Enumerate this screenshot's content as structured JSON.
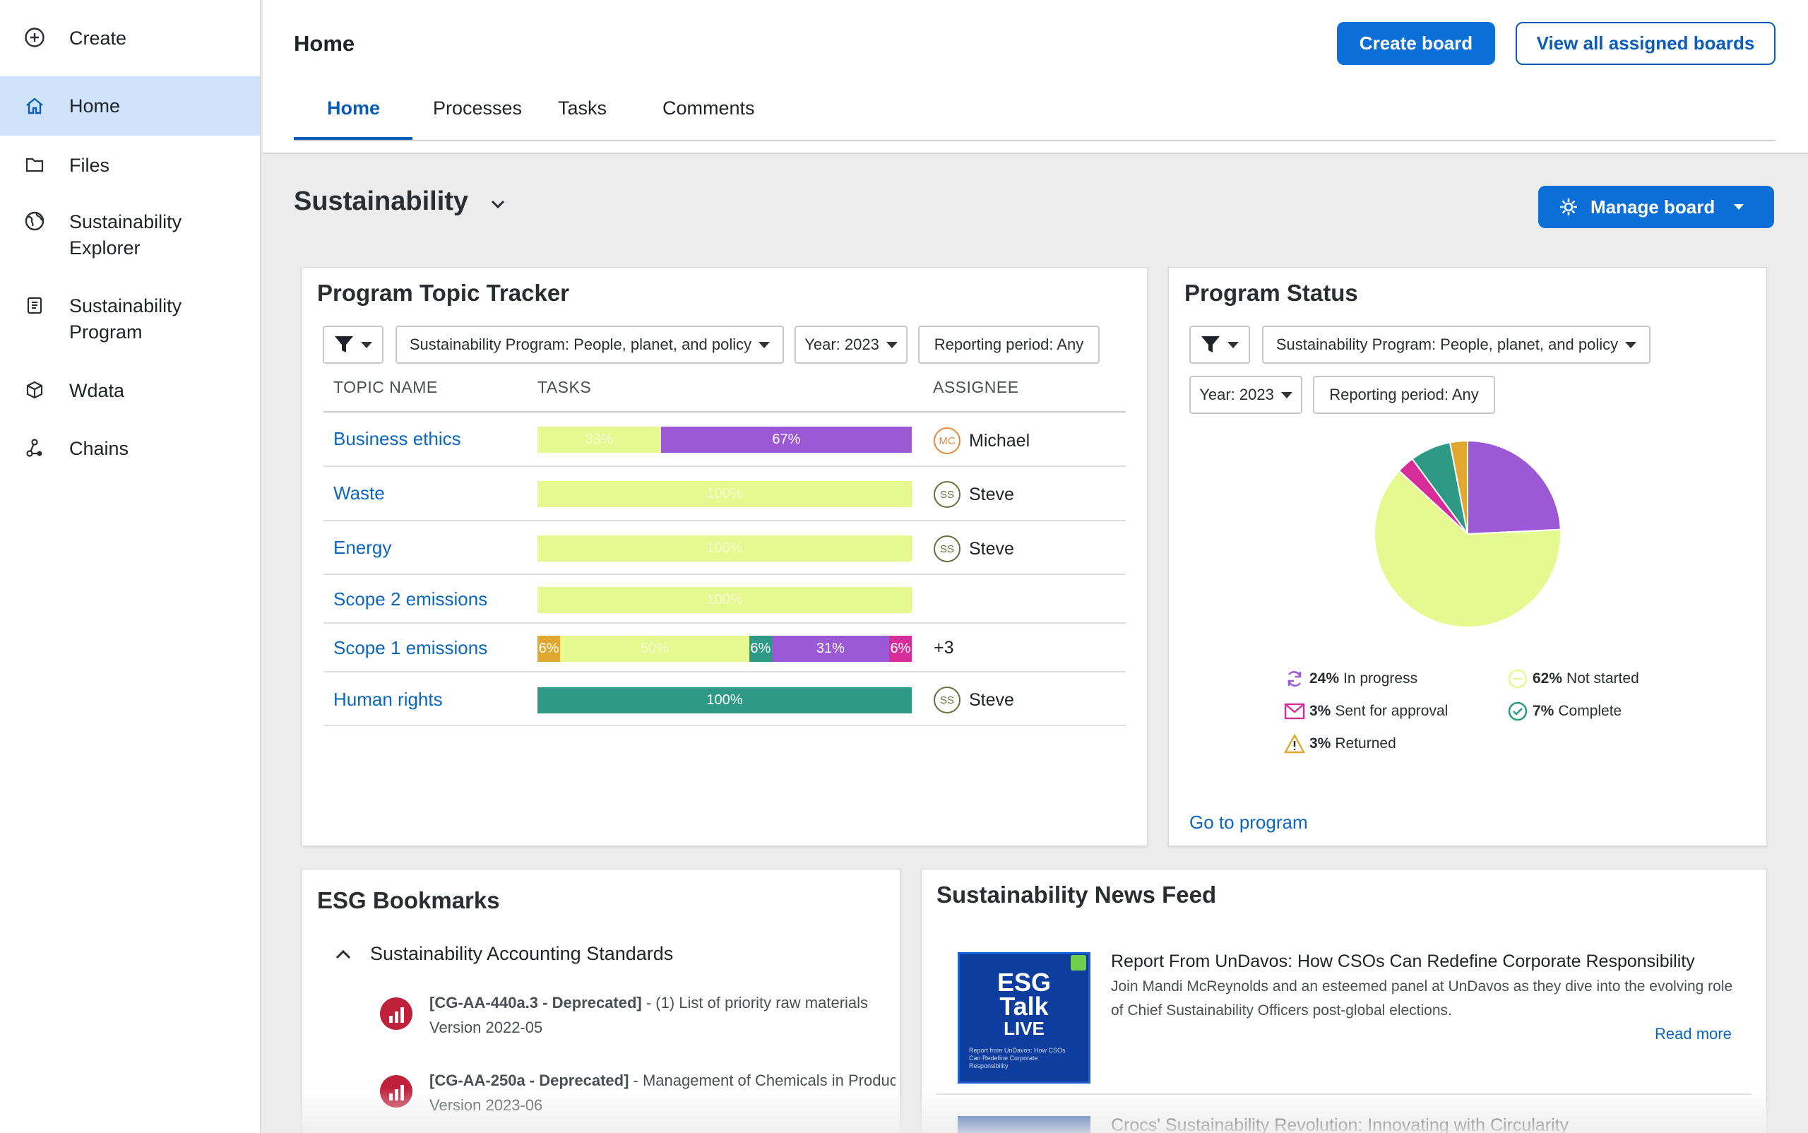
{
  "sidebar": {
    "items": [
      {
        "label": "Create",
        "icon": "plus-circle-icon"
      },
      {
        "label": "Home",
        "icon": "home-icon"
      },
      {
        "label": "Files",
        "icon": "folder-icon"
      },
      {
        "label": "Sustainability Explorer",
        "icon": "globe-icon"
      },
      {
        "label": "Sustainability Program",
        "icon": "clipboard-icon"
      },
      {
        "label": "Wdata",
        "icon": "cube-icon"
      },
      {
        "label": "Chains",
        "icon": "chains-icon"
      }
    ]
  },
  "header": {
    "title": "Home",
    "create_board": "Create board",
    "view_all": "View all assigned boards",
    "tabs": [
      "Home",
      "Processes",
      "Tasks",
      "Comments"
    ]
  },
  "board": {
    "title": "Sustainability",
    "manage": "Manage board"
  },
  "tracker": {
    "title": "Program Topic Tracker",
    "filters": {
      "program": "Sustainability Program: People, planet, and policy",
      "year": "Year: 2023",
      "period": "Reporting period: Any"
    },
    "columns": [
      "TOPIC NAME",
      "TASKS",
      "ASSIGNEE"
    ],
    "rows": [
      {
        "topic": "Business ethics",
        "segments": [
          {
            "pct": 33,
            "label": "33%",
            "color": "#e6f991"
          },
          {
            "pct": 67,
            "label": "67%",
            "color": "#9b59d6"
          }
        ],
        "assignee": {
          "initials": "MC",
          "name": "Michael"
        }
      },
      {
        "topic": "Waste",
        "segments": [
          {
            "pct": 100,
            "label": "100%",
            "color": "#e6f991"
          }
        ],
        "assignee": {
          "initials": "SS",
          "name": "Steve"
        }
      },
      {
        "topic": "Energy",
        "segments": [
          {
            "pct": 100,
            "label": "100%",
            "color": "#e6f991"
          }
        ],
        "assignee": {
          "initials": "SS",
          "name": "Steve"
        }
      },
      {
        "topic": "Scope 2 emissions",
        "segments": [
          {
            "pct": 100,
            "label": "100%",
            "color": "#e6f991"
          }
        ],
        "assignee": null
      },
      {
        "topic": "Scope 1 emissions",
        "segments": [
          {
            "pct": 6,
            "label": "6%",
            "color": "#e0a82e"
          },
          {
            "pct": 50,
            "label": "50%",
            "color": "#e6f991"
          },
          {
            "pct": 6,
            "label": "6%",
            "color": "#2e9a85"
          },
          {
            "pct": 31,
            "label": "31%",
            "color": "#9b59d6"
          },
          {
            "pct": 6,
            "label": "6%",
            "color": "#d62d9a"
          }
        ],
        "assignee_more": "+3"
      },
      {
        "topic": "Human rights",
        "segments": [
          {
            "pct": 100,
            "label": "100%",
            "color": "#2e9a85"
          }
        ],
        "assignee": {
          "initials": "SS",
          "name": "Steve"
        }
      }
    ]
  },
  "status": {
    "title": "Program Status",
    "filters": {
      "program": "Sustainability Program: People, planet, and policy",
      "year": "Year: 2023",
      "period": "Reporting period: Any"
    },
    "legend": [
      {
        "pct": "24%",
        "label": "In progress",
        "icon": "refresh-icon",
        "color": "#9b59d6"
      },
      {
        "pct": "62%",
        "label": "Not started",
        "icon": "dash-circle-icon",
        "color": "#e6f991"
      },
      {
        "pct": "3%",
        "label": "Sent for approval",
        "icon": "envelope-icon",
        "color": "#d62d9a"
      },
      {
        "pct": "7%",
        "label": "Complete",
        "icon": "check-circle-icon",
        "color": "#2e9a85"
      },
      {
        "pct": "3%",
        "label": "Returned",
        "icon": "warning-icon",
        "color": "#e0a82e"
      }
    ],
    "link": "Go to program"
  },
  "chart_data": {
    "type": "pie",
    "title": "Program Status",
    "categories": [
      "In progress",
      "Not started",
      "Sent for approval",
      "Complete",
      "Returned"
    ],
    "values": [
      24,
      62,
      3,
      7,
      3
    ],
    "colors": [
      "#9b59d6",
      "#e6f991",
      "#d62d9a",
      "#2e9a85",
      "#e0a82e"
    ]
  },
  "bookmarks": {
    "title": "ESG Bookmarks",
    "group": "Sustainability Accounting Standards",
    "items": [
      {
        "code": "[CG-AA-440a.3 - Deprecated]",
        "text": " - (1) List of priority raw materials",
        "version": "Version 2022-05"
      },
      {
        "code": "[CG-AA-250a - Deprecated]",
        "text": " - Management of Chemicals in Products",
        "version": "Version 2023-06"
      }
    ]
  },
  "news": {
    "title": "Sustainability News Feed",
    "items": [
      {
        "title": "Report From UnDavos: How CSOs Can Redefine Corporate Responsibility",
        "desc": "Join Mandi McReynolds and an esteemed panel at UnDavos as they dive into the evolving role of Chief Sustainability Officers post-global elections.",
        "read_more": "Read more",
        "thumb": {
          "l1": "ESG",
          "l2": "Talk",
          "l3": "LIVE",
          "caption": "Report from UnDavos: How CSOs Can Redefine Corporate Responsibility"
        }
      },
      {
        "title": "Crocs' Sustainability Revolution: Innovating with Circularity"
      }
    ]
  }
}
